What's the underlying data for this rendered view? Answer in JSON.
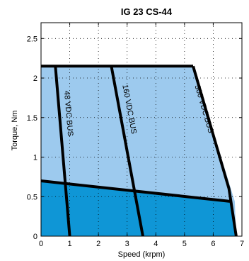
{
  "chart_data": {
    "type": "area",
    "title": "IG 23 CS-44",
    "xlabel": "Speed (krpm)",
    "ylabel": "Torque, Nm",
    "xlim": [
      0,
      7
    ],
    "ylim": [
      0,
      2.7
    ],
    "xticks": [
      0,
      1,
      2,
      3,
      4,
      5,
      6,
      7
    ],
    "yticks": [
      0,
      0.5,
      1,
      1.5,
      2,
      2.5
    ],
    "grid": true,
    "colors": {
      "intermittent_region": "#9dcaee",
      "continuous_region": "#0f96d6",
      "lines": "#000000"
    },
    "regions": [
      {
        "kind": "intermittent",
        "points": [
          [
            0,
            2.15
          ],
          [
            5.3,
            2.15
          ],
          [
            6.75,
            0.44
          ],
          [
            6.8,
            0
          ]
        ]
      },
      {
        "kind": "continuous",
        "points": [
          [
            0,
            0.7
          ],
          [
            6.58,
            0.44
          ],
          [
            6.8,
            0
          ]
        ]
      }
    ],
    "series": [
      {
        "name": "48 VDC BUS",
        "x": [
          0.5,
          1.0
        ],
        "y": [
          2.15,
          0
        ]
      },
      {
        "name": "160 VDC BUS",
        "x": [
          2.45,
          3.55
        ],
        "y": [
          2.15,
          0
        ]
      },
      {
        "name": "300 VDC BUS",
        "x": [
          5.3,
          6.55,
          6.8
        ],
        "y": [
          2.15,
          0.6,
          0
        ]
      },
      {
        "name": "",
        "x": [
          0,
          6.58
        ],
        "y": [
          0.7,
          0.44
        ]
      },
      {
        "name": "",
        "x": [
          0,
          5.3
        ],
        "y": [
          2.15,
          2.15
        ]
      }
    ]
  }
}
